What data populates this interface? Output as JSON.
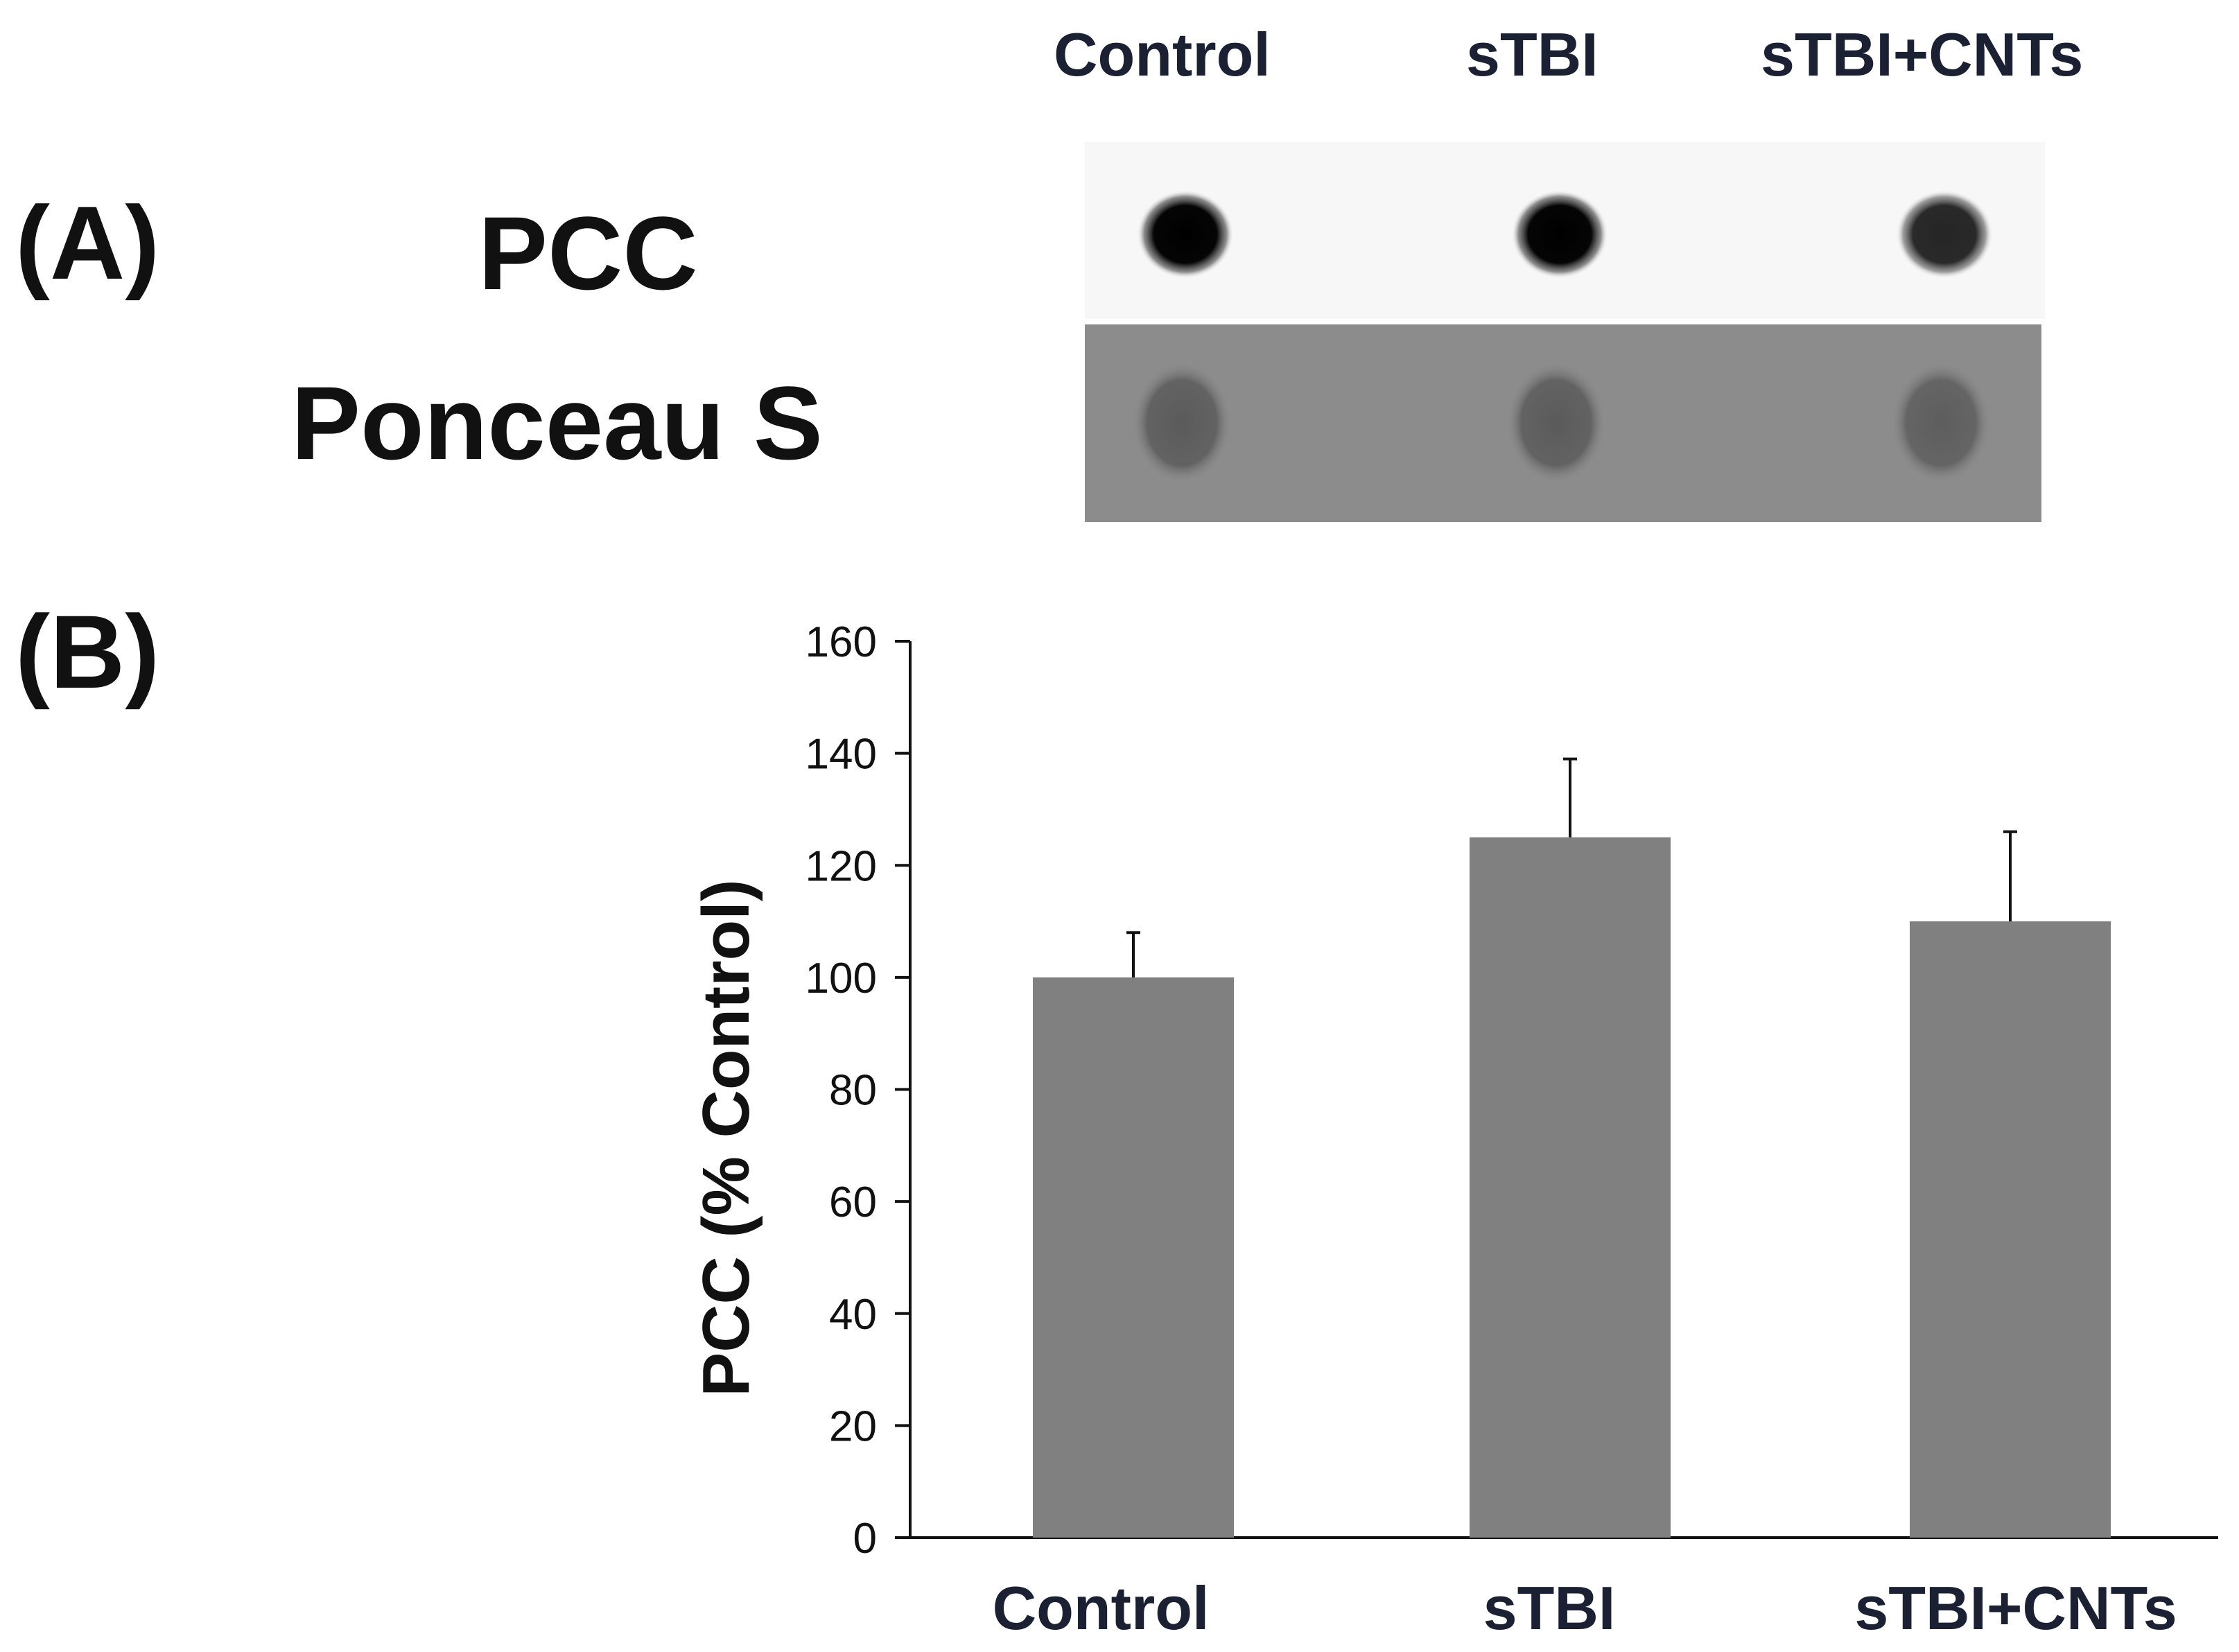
{
  "panel_a": {
    "label": "(A)",
    "lanes": [
      "Control",
      "sTBI",
      "sTBI+CNTs"
    ],
    "rows": [
      "PCC",
      "Ponceau S"
    ],
    "pcc_spot_darkness": [
      1.0,
      1.0,
      0.85
    ],
    "ponceau_spot_darkness": [
      0.55,
      0.55,
      0.5
    ]
  },
  "panel_b": {
    "label": "(B)"
  },
  "colors": {
    "bar": "#808080",
    "axis": "#111111",
    "strip": "#8c8c8c"
  },
  "chart_data": {
    "type": "bar",
    "categories": [
      "Control",
      "sTBI",
      "sTBI+CNTs"
    ],
    "values": [
      100,
      125,
      110
    ],
    "error_plus": [
      8,
      14,
      16
    ],
    "title": "",
    "xlabel": "",
    "ylabel": "PCC (% Control)",
    "ylim": [
      0,
      160
    ],
    "yticks": [
      0,
      20,
      40,
      60,
      80,
      100,
      120,
      140,
      160
    ],
    "grid": false,
    "legend": "none"
  }
}
